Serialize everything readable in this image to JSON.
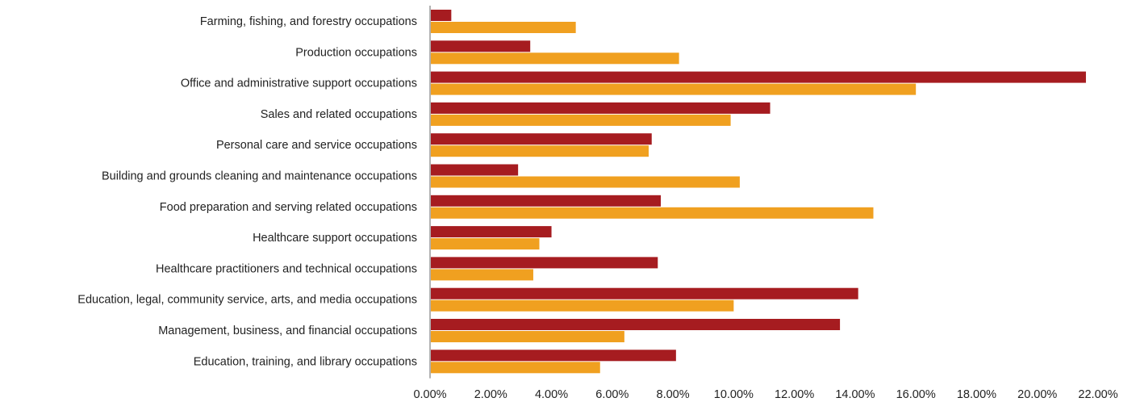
{
  "chart_data": {
    "type": "bar",
    "orientation": "horizontal",
    "categories": [
      "Farming, fishing, and forestry occupations",
      "Production occupations",
      "Office and administrative support occupations",
      "Sales and related occupations",
      "Personal care and service occupations",
      "Building and grounds cleaning and maintenance occupations",
      "Food preparation and serving related occupations",
      "Healthcare support occupations",
      "Healthcare practitioners and technical occupations",
      "Education, legal, community service, arts, and media occupations",
      "Management, business, and financial occupations",
      "Education, training, and library occupations"
    ],
    "series": [
      {
        "color": "#A61C20",
        "values": [
          0.7,
          3.3,
          21.6,
          11.2,
          7.3,
          2.9,
          7.6,
          4.0,
          7.5,
          14.1,
          13.5,
          8.1
        ]
      },
      {
        "color": "#F0A020",
        "values": [
          4.8,
          8.2,
          16.0,
          9.9,
          7.2,
          10.2,
          14.6,
          3.6,
          3.4,
          10.0,
          6.4,
          5.6
        ]
      }
    ],
    "xlim": [
      0,
      22
    ],
    "x_ticks": [
      "0.00%",
      "2.00%",
      "4.00%",
      "6.00%",
      "8.00%",
      "10.00%",
      "12.00%",
      "14.00%",
      "16.00%",
      "18.00%",
      "20.00%",
      "22.00%"
    ],
    "title": "",
    "xlabel": "",
    "ylabel": "",
    "grid": false,
    "legend": "none"
  }
}
